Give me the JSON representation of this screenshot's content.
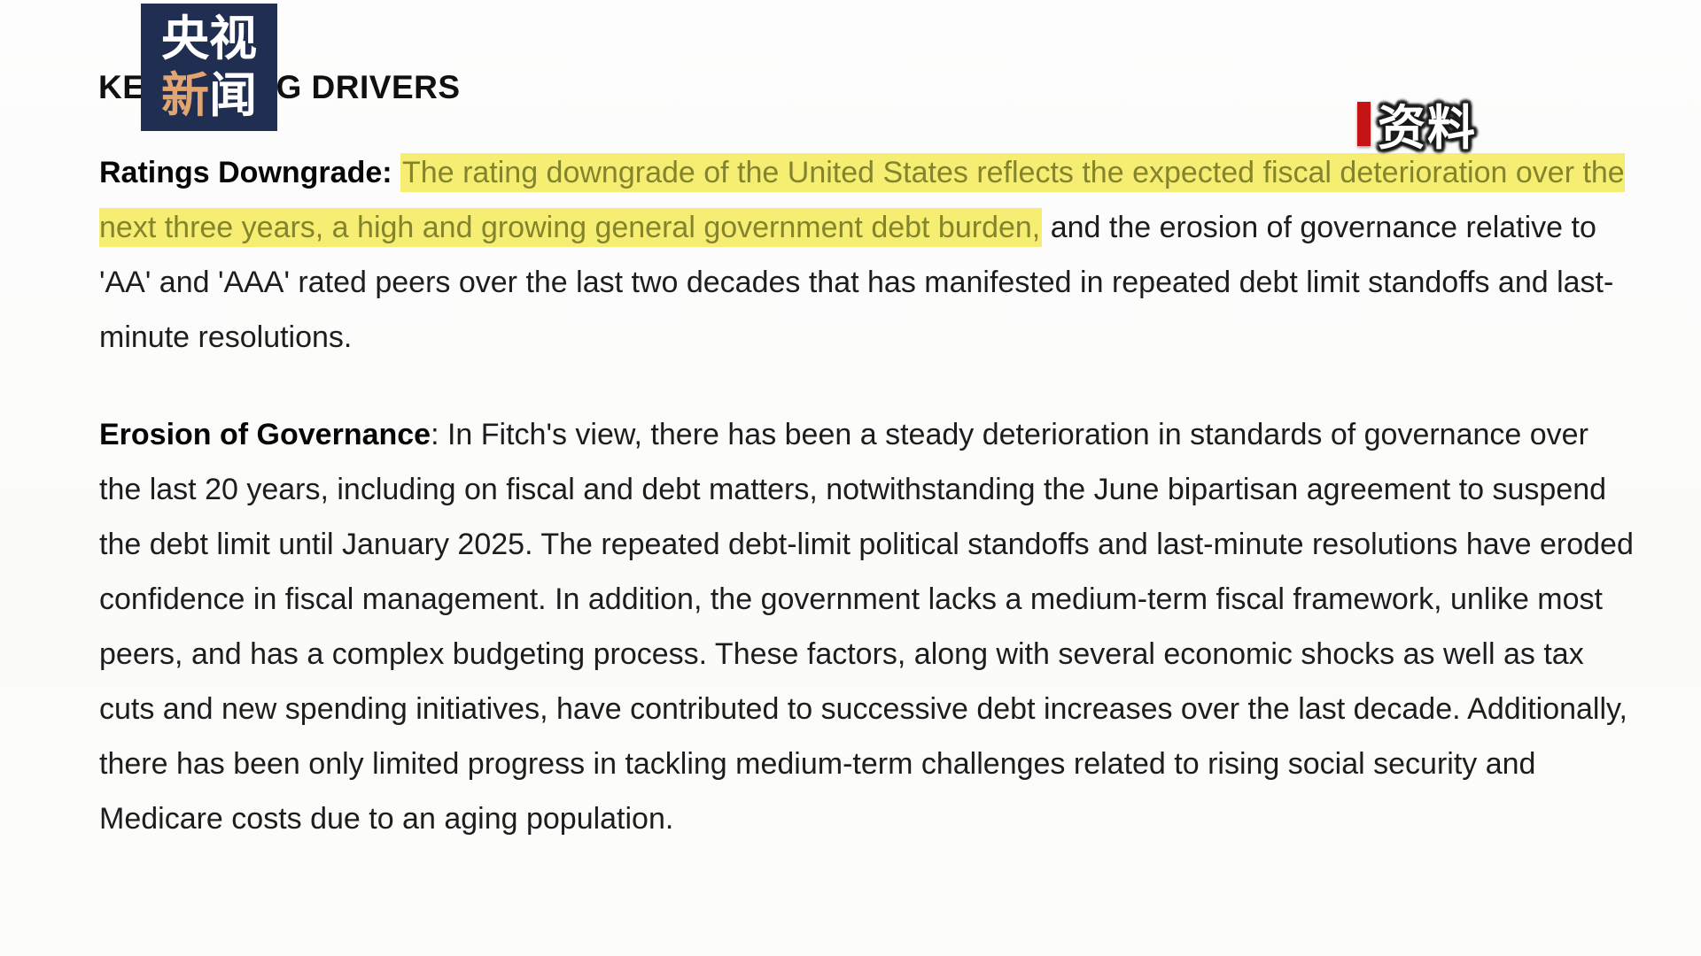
{
  "logo": {
    "line1": "央视",
    "line2_char1": "新",
    "line2_char2": "闻"
  },
  "header": {
    "title": "KEY RATING DRIVERS"
  },
  "badge": {
    "label": "资料"
  },
  "colors": {
    "logo_background": "#202e52",
    "logo_accent_char": "#e3a570",
    "badge_bar_red": "#c41414",
    "highlight_background": "#f6ee73",
    "highlight_text": "#84842d",
    "body_text": "#1d1d1d",
    "page_background": "#fcfcfc"
  },
  "paragraphs": [
    {
      "lead": "Ratings Downgrade: ",
      "highlight": "The rating downgrade of the United States reflects the expected fiscal deterioration over the next three years, a high and growing general government debt burden,",
      "rest": " and the erosion of governance relative to 'AA' and 'AAA' rated peers over the last two decades that has manifested in repeated debt limit standoffs and last-minute resolutions."
    },
    {
      "lead": "Erosion of Governance",
      "highlight": "",
      "rest": ": In Fitch's view, there has been a steady deterioration in standards of governance over the last 20 years, including on fiscal and debt matters, notwithstanding the June bipartisan agreement to suspend the debt limit until January 2025. The repeated debt-limit political standoffs and last-minute resolutions have eroded confidence in fiscal management. In addition, the government lacks a medium-term fiscal framework, unlike most peers, and has a complex budgeting process. These factors, along with several economic shocks as well as tax cuts and new spending initiatives, have contributed to successive debt increases over the last decade. Additionally, there has been only limited progress in tackling medium-term challenges related to rising social security and Medicare costs due to an aging population."
    }
  ]
}
